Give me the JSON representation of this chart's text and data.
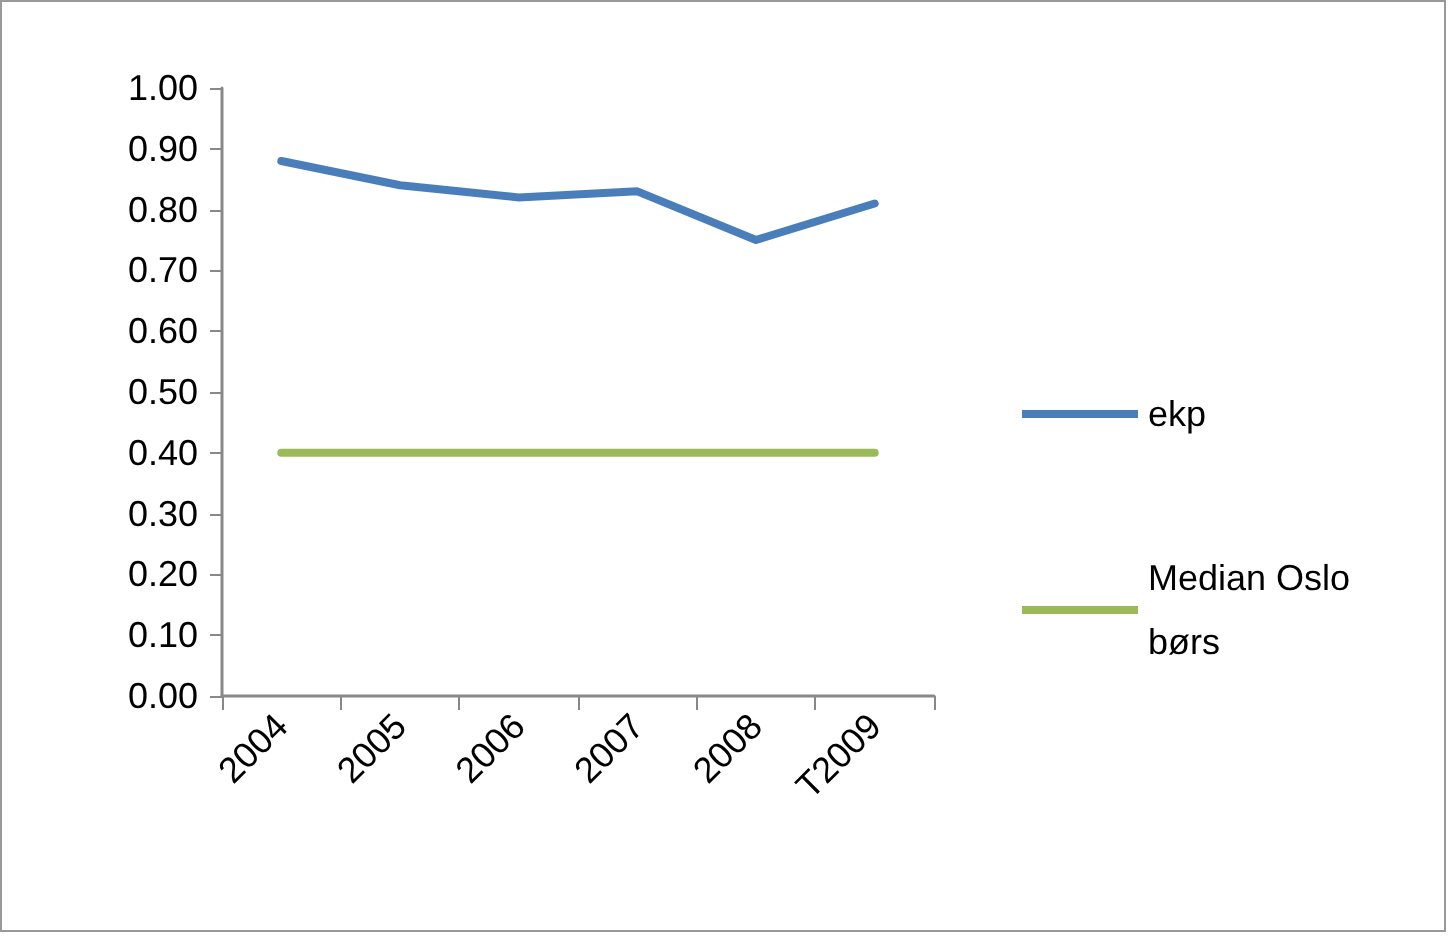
{
  "chart_data": {
    "type": "line",
    "categories": [
      "2004",
      "2005",
      "2006",
      "2007",
      "2008",
      "T2009"
    ],
    "series": [
      {
        "name": "ekp",
        "color": "#4a7ebb",
        "values": [
          0.88,
          0.84,
          0.82,
          0.83,
          0.75,
          0.81
        ]
      },
      {
        "name": "Median Oslo børs",
        "color": "#9bbb59",
        "values": [
          0.4,
          0.4,
          0.4,
          0.4,
          0.4,
          0.4
        ]
      }
    ],
    "ylim": [
      0,
      1
    ],
    "yticks": [
      {
        "value": 0,
        "label": "0.00"
      },
      {
        "value": 0.1,
        "label": "0.10"
      },
      {
        "value": 0.2,
        "label": "0.20"
      },
      {
        "value": 0.3,
        "label": "0.30"
      },
      {
        "value": 0.4,
        "label": "0.40"
      },
      {
        "value": 0.5,
        "label": "0.50"
      },
      {
        "value": 0.6,
        "label": "0.60"
      },
      {
        "value": 0.7,
        "label": "0.70"
      },
      {
        "value": 0.8,
        "label": "0.80"
      },
      {
        "value": 0.9,
        "label": "0.90"
      },
      {
        "value": 1,
        "label": "1.00"
      }
    ],
    "grid": false,
    "legend": "right",
    "marker": "none",
    "line_style": "solid"
  }
}
